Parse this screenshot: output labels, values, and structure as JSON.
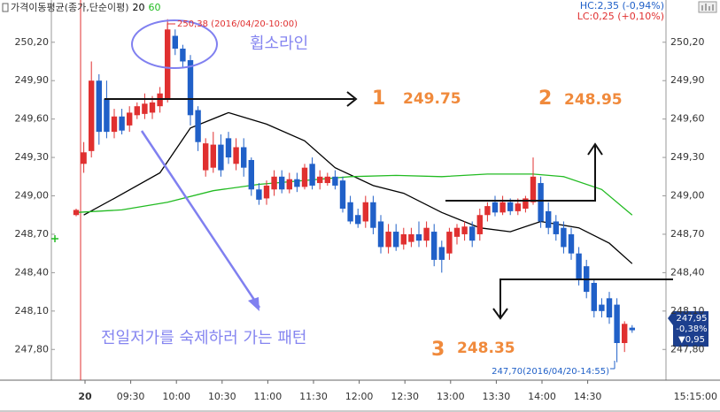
{
  "chart_data": {
    "type": "candlestick",
    "legend_title": "가격이동평균(종가,단순이평)",
    "legend_corner": "top-left",
    "info": {
      "hc": "HC:2,35 (-0,94%)",
      "lc": "LC:0,25 (+0,10%)"
    },
    "x": [
      "09:00",
      "09:05",
      "09:10",
      "09:15",
      "09:20",
      "09:25",
      "09:30",
      "09:35",
      "09:40",
      "09:45",
      "09:50",
      "09:55",
      "10:00",
      "10:05",
      "10:10",
      "10:15",
      "10:20",
      "10:25",
      "10:30",
      "10:35",
      "10:40",
      "10:45",
      "10:50",
      "10:55",
      "11:00",
      "11:05",
      "11:10",
      "11:15",
      "11:20",
      "11:25",
      "11:30",
      "11:35",
      "11:40",
      "11:45",
      "11:50",
      "11:55",
      "12:00",
      "12:05",
      "12:10",
      "12:15",
      "12:20",
      "12:25",
      "12:30",
      "12:35",
      "12:40",
      "12:45",
      "12:50",
      "12:55",
      "13:00",
      "13:05",
      "13:10",
      "13:15",
      "13:20",
      "13:25",
      "13:30",
      "13:35",
      "13:40",
      "13:45",
      "13:50",
      "13:55",
      "14:00",
      "14:05",
      "14:10",
      "14:15",
      "14:20",
      "14:25",
      "14:30",
      "14:35",
      "14:40",
      "14:45",
      "14:50",
      "14:55",
      "15:00",
      "15:05"
    ],
    "open": [
      248.85,
      249.25,
      249.35,
      249.9,
      249.76,
      249.5,
      249.62,
      249.55,
      249.63,
      249.64,
      249.65,
      249.7,
      249.76,
      250.25,
      250.15,
      250.06,
      249.67,
      249.2,
      249.22,
      249.4,
      249.45,
      249.25,
      249.38,
      249.28,
      249.05,
      248.98,
      249.05,
      249.15,
      249.05,
      249.13,
      249.07,
      249.25,
      249.1,
      249.1,
      249.15,
      249.12,
      248.95,
      248.85,
      248.8,
      248.95,
      248.8,
      248.6,
      248.72,
      248.62,
      248.64,
      248.7,
      248.65,
      248.72,
      248.6,
      248.55,
      248.68,
      248.7,
      248.76,
      248.7,
      248.85,
      248.95,
      248.87,
      248.95,
      248.88,
      248.9,
      248.95,
      249.1,
      248.88,
      248.8,
      248.75,
      248.7,
      248.55,
      248.45,
      248.32,
      248.15,
      248.2,
      248.15,
      247.85,
      247.97
    ],
    "high": [
      248.9,
      249.42,
      250.05,
      249.95,
      249.9,
      249.68,
      249.68,
      249.7,
      249.73,
      249.8,
      249.78,
      249.85,
      250.38,
      250.3,
      250.18,
      250.1,
      249.7,
      249.45,
      249.5,
      249.48,
      249.5,
      249.45,
      249.45,
      249.3,
      249.1,
      249.12,
      249.2,
      249.2,
      249.18,
      249.18,
      249.25,
      249.3,
      249.2,
      249.18,
      249.2,
      249.15,
      249.0,
      248.9,
      249.0,
      249.0,
      248.85,
      248.78,
      248.78,
      248.75,
      248.75,
      248.8,
      248.8,
      248.78,
      248.65,
      248.75,
      248.78,
      248.8,
      248.8,
      248.9,
      248.95,
      249.0,
      249.0,
      248.98,
      248.98,
      249.0,
      249.3,
      249.15,
      248.95,
      248.85,
      248.8,
      248.75,
      248.6,
      248.5,
      248.35,
      248.2,
      248.25,
      248.2,
      248.02,
      247.99
    ],
    "low": [
      248.84,
      249.18,
      249.3,
      249.4,
      249.45,
      249.45,
      249.48,
      249.5,
      249.6,
      249.6,
      249.6,
      249.65,
      249.73,
      250.1,
      250.0,
      249.55,
      249.35,
      249.15,
      249.18,
      249.15,
      249.25,
      249.2,
      249.15,
      249.0,
      248.93,
      248.93,
      249.0,
      249.02,
      249.02,
      249.03,
      249.05,
      249.05,
      249.05,
      249.08,
      249.05,
      248.87,
      248.78,
      248.75,
      248.75,
      248.7,
      248.55,
      248.55,
      248.57,
      248.58,
      248.6,
      248.6,
      248.6,
      248.45,
      248.4,
      248.5,
      248.62,
      248.65,
      248.6,
      248.65,
      248.8,
      248.84,
      248.85,
      248.85,
      248.85,
      248.87,
      248.93,
      248.75,
      248.7,
      248.65,
      248.55,
      248.5,
      248.3,
      248.2,
      248.05,
      248.05,
      248.0,
      247.7,
      247.78,
      247.93
    ],
    "close": [
      248.89,
      249.34,
      249.9,
      249.5,
      249.5,
      249.62,
      249.51,
      249.65,
      249.7,
      249.72,
      249.73,
      249.8,
      250.3,
      250.15,
      250.05,
      249.63,
      249.42,
      249.41,
      249.4,
      249.2,
      249.3,
      249.38,
      249.22,
      249.05,
      248.97,
      249.08,
      249.15,
      249.05,
      249.13,
      249.07,
      249.22,
      249.08,
      249.15,
      249.15,
      249.08,
      248.9,
      248.8,
      248.78,
      248.95,
      248.75,
      248.6,
      248.72,
      248.6,
      248.7,
      248.7,
      248.65,
      248.75,
      248.5,
      248.5,
      248.72,
      248.75,
      248.76,
      248.65,
      248.85,
      248.92,
      248.87,
      248.95,
      248.88,
      248.94,
      248.98,
      249.15,
      248.8,
      248.75,
      248.7,
      248.6,
      248.55,
      248.35,
      248.25,
      248.1,
      248.1,
      248.05,
      247.85,
      248.0,
      247.95
    ],
    "up_color": "#e03030",
    "down_color": "#2060c8",
    "series": [
      {
        "name": "20",
        "color": "#000000",
        "x": [
          "09:05",
          "09:25",
          "09:55",
          "10:15",
          "10:40",
          "11:05",
          "11:30",
          "11:50",
          "12:15",
          "12:35",
          "13:00",
          "13:25",
          "13:45",
          "14:05",
          "14:30",
          "14:50",
          "15:05"
        ],
        "values": [
          248.85,
          248.98,
          249.18,
          249.53,
          249.65,
          249.56,
          249.43,
          249.22,
          249.08,
          249.02,
          248.87,
          248.75,
          248.72,
          248.8,
          248.75,
          248.63,
          248.47
        ]
      },
      {
        "name": "60",
        "color": "#22bb22",
        "x": [
          "09:00",
          "09:30",
          "10:00",
          "10:30",
          "11:00",
          "11:30",
          "12:00",
          "12:30",
          "13:00",
          "13:30",
          "14:00",
          "14:20",
          "14:45",
          "15:05"
        ],
        "values": [
          248.87,
          248.89,
          248.95,
          249.04,
          249.09,
          249.12,
          249.15,
          249.16,
          249.15,
          249.17,
          249.17,
          249.15,
          249.05,
          248.85
        ]
      }
    ],
    "ylim": [
      247.56,
      250.53
    ],
    "yticks": [
      {
        "value": 247.8,
        "label": "247,80"
      },
      {
        "value": 248.1,
        "label": "248,10"
      },
      {
        "value": 248.4,
        "label": "248,40"
      },
      {
        "value": 248.7,
        "label": "248,70"
      },
      {
        "value": 249.0,
        "label": "249,00"
      },
      {
        "value": 249.3,
        "label": "249,30"
      },
      {
        "value": 249.6,
        "label": "249,60"
      },
      {
        "value": 249.9,
        "label": "249,90"
      },
      {
        "value": 250.2,
        "label": "250,20"
      }
    ],
    "xticks": [
      {
        "value": "09:00",
        "label": "20"
      },
      "09:30",
      "10:00",
      "10:30",
      "11:00",
      "11:30",
      "12:00",
      "12:30",
      "13:00",
      "13:30",
      "14:00",
      "14:30"
    ],
    "current_time": "15:15:00",
    "high_label": "250,38 (2016/04/20-10:00)",
    "low_label": "247,70(2016/04/20-14:55)",
    "current_price": {
      "price": "247,95",
      "change_pct": "-0,38%",
      "change": "▼0,95"
    },
    "annotations": {
      "whipsaw": "휩소라인",
      "pattern": "전일저가를 숙제하러 가는 패턴",
      "n1": "1",
      "p1": "249.75",
      "n2": "2",
      "p2": "248.95",
      "n3": "3",
      "p3": "248.35"
    }
  }
}
